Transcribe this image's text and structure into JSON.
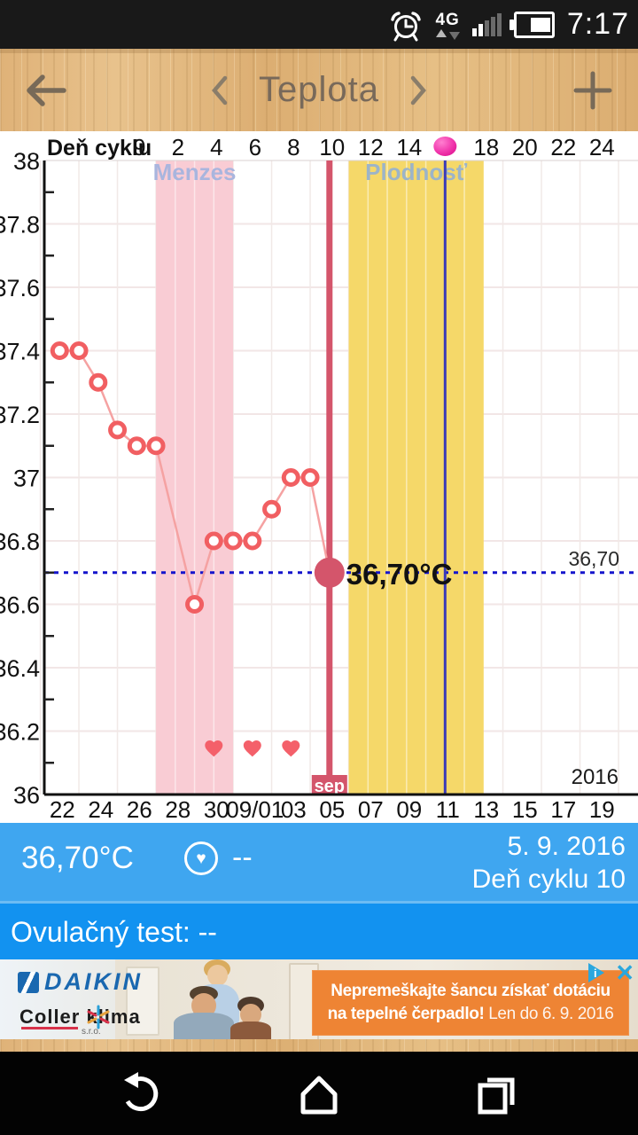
{
  "status_bar": {
    "time": "7:17",
    "network_label": "4G",
    "icons": [
      "alarm-icon",
      "network-arrows-icon",
      "signal-strength-icon",
      "battery-icon"
    ]
  },
  "header": {
    "title": "Teplota"
  },
  "chart_data": {
    "type": "line",
    "title": "",
    "ylabel": "",
    "ylim": [
      36,
      38
    ],
    "grid": true,
    "y_tick_labels": [
      "38",
      "37.8",
      "37.6",
      "37.4",
      "37.2",
      "37",
      "36.8",
      "36.6",
      "36.4",
      "36.2",
      "36"
    ],
    "x_tick_labels": [
      {
        "offset": 0,
        "label": "22"
      },
      {
        "offset": 2,
        "label": "24"
      },
      {
        "offset": 4,
        "label": "26"
      },
      {
        "offset": 6,
        "label": "28"
      },
      {
        "offset": 8,
        "label": "30"
      },
      {
        "offset": 10,
        "label": "09/01"
      },
      {
        "offset": 12,
        "label": "03"
      },
      {
        "offset": 14,
        "label": "05"
      },
      {
        "offset": 16,
        "label": "07"
      },
      {
        "offset": 18,
        "label": "09"
      },
      {
        "offset": 20,
        "label": "11"
      },
      {
        "offset": 22,
        "label": "13"
      },
      {
        "offset": 24,
        "label": "15"
      },
      {
        "offset": 26,
        "label": "17"
      },
      {
        "offset": 28,
        "label": "19"
      }
    ],
    "cycle_axis": {
      "label": "Deň cyklu",
      "ticks": [
        {
          "offset": 4,
          "label": "9"
        },
        {
          "offset": 6,
          "label": "2"
        },
        {
          "offset": 8,
          "label": "4"
        },
        {
          "offset": 10,
          "label": "6"
        },
        {
          "offset": 12,
          "label": "8"
        },
        {
          "offset": 14,
          "label": "10"
        },
        {
          "offset": 16,
          "label": "12"
        },
        {
          "offset": 18,
          "label": "14"
        },
        {
          "offset": 22,
          "label": "18"
        },
        {
          "offset": 24,
          "label": "20"
        },
        {
          "offset": 26,
          "label": "22"
        },
        {
          "offset": 28,
          "label": "24"
        }
      ],
      "ovulation_marker_offset": 20
    },
    "series": [
      {
        "name": "teplota",
        "points": [
          {
            "offset": 0,
            "temp": 37.4
          },
          {
            "offset": 1,
            "temp": 37.4
          },
          {
            "offset": 2,
            "temp": 37.3
          },
          {
            "offset": 3,
            "temp": 37.15
          },
          {
            "offset": 4,
            "temp": 37.1
          },
          {
            "offset": 5,
            "temp": 37.1
          },
          {
            "offset": 7,
            "temp": 36.6
          },
          {
            "offset": 8,
            "temp": 36.8
          },
          {
            "offset": 9,
            "temp": 36.8
          },
          {
            "offset": 10,
            "temp": 36.8
          },
          {
            "offset": 11,
            "temp": 36.9
          },
          {
            "offset": 12,
            "temp": 37.0
          },
          {
            "offset": 13,
            "temp": 37.0
          },
          {
            "offset": 14,
            "temp": 36.7,
            "current": true
          }
        ]
      }
    ],
    "hearts_offsets": [
      8,
      10,
      12
    ],
    "bands": [
      {
        "name": "menses",
        "label": "Menzes",
        "from_offset": 5,
        "to_offset": 9,
        "color": "#f9ccd4",
        "label_color": "#a9b5de"
      },
      {
        "name": "fertile",
        "label": "Plodnosť",
        "from_offset": 15,
        "to_offset": 22,
        "color": "#f5d869",
        "label_color": "#9cb4c8"
      }
    ],
    "today_line": {
      "offset": 14,
      "color": "#d4556b",
      "month_label": "sep"
    },
    "ovulation_line": {
      "offset": 20,
      "color": "#3a3ab8"
    },
    "coverline": {
      "temp": 36.7,
      "right_label": "36,70",
      "color": "#1414cc"
    },
    "current_annotation": "36,70°C",
    "year_label": "2016",
    "line_color": "#f5a2a2",
    "marker_color": "#f15f62",
    "current_dot_color": "#d4556b",
    "heart_color": "#f4606a",
    "ovulation_dot_color": "#f23aae"
  },
  "info_bar": {
    "temperature": "36,70°C",
    "intimacy_value": "--",
    "date": "5. 9. 2016",
    "cycle_day": "Deň cyklu 10"
  },
  "ovulation_bar": {
    "label": "Ovulačný test: --"
  },
  "ad": {
    "brand": "DAIKIN",
    "dealer": "Coller klima",
    "dealer_suffix": "s.r.o.",
    "headline_line1": "Nepremeškajte šancu získať dotáciu",
    "headline_line2_bold": "na tepelné čerpadlo!",
    "headline_line2_rest": " Len do 6. 9. 2016",
    "close_glyph": "✕"
  }
}
